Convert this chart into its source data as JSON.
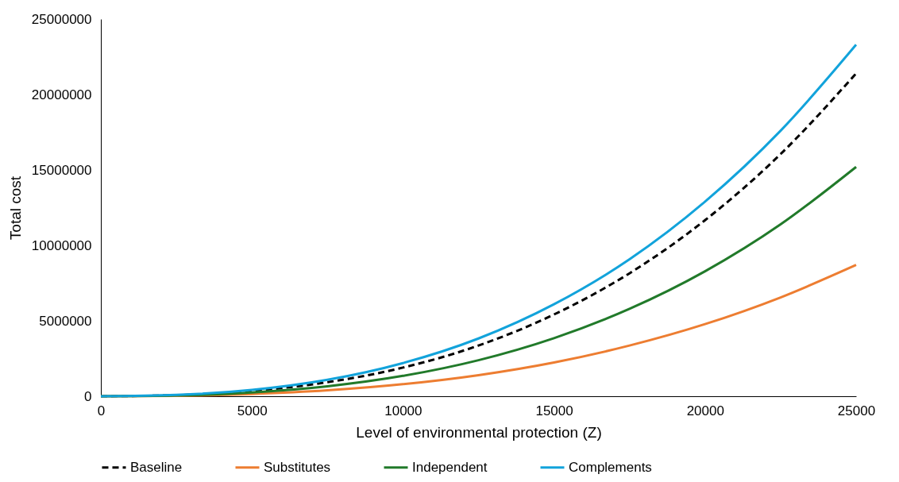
{
  "chart_data": {
    "type": "line",
    "xlabel": "Level of environmental protection (Z)",
    "ylabel": "Total cost",
    "x": [
      0,
      2500,
      5000,
      7500,
      10000,
      12500,
      15000,
      17500,
      20000,
      22500,
      25000
    ],
    "series": [
      {
        "name": "Baseline",
        "color": "#000000",
        "line_style": "dashed",
        "values": [
          0,
          70000,
          350000,
          930000,
          1900000,
          3360000,
          5420000,
          8150000,
          11670000,
          16050000,
          21400000
        ]
      },
      {
        "name": "Substitutes",
        "color": "#ed7d31",
        "values": [
          0,
          30000,
          150000,
          390000,
          800000,
          1400000,
          2240000,
          3360000,
          4780000,
          6550000,
          8700000
        ]
      },
      {
        "name": "Independent",
        "color": "#217a2a",
        "values": [
          0,
          50000,
          250000,
          660000,
          1350000,
          2390000,
          3850000,
          5790000,
          8280000,
          11390000,
          15200000
        ]
      },
      {
        "name": "Complements",
        "color": "#12a3db",
        "values": [
          0,
          90000,
          420000,
          1090000,
          2200000,
          3830000,
          6100000,
          9080000,
          12900000,
          17600000,
          23300000
        ]
      }
    ],
    "xlim": [
      0,
      25000
    ],
    "xticks": [
      0,
      5000,
      10000,
      15000,
      20000,
      25000
    ],
    "ylim": [
      0,
      25000000
    ],
    "yticks": [
      0,
      5000000,
      10000000,
      15000000,
      20000000,
      25000000
    ],
    "grid": false,
    "legend": "bottom",
    "line_style": "solid",
    "marker": "none"
  }
}
